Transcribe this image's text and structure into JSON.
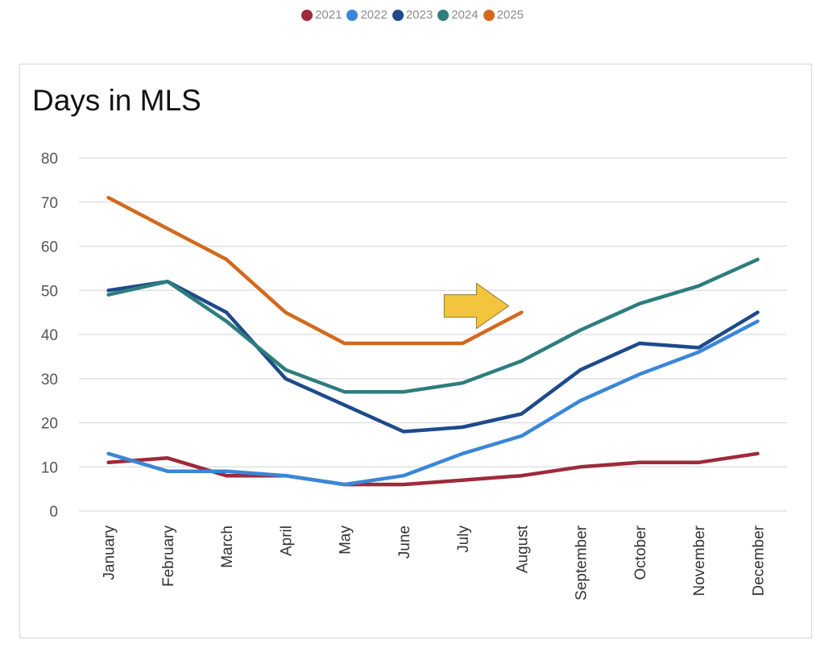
{
  "chart_data": {
    "type": "line",
    "title": "Days in MLS",
    "xlabel": "",
    "ylabel": "",
    "ylim": [
      0,
      80
    ],
    "yticks": [
      0,
      10,
      20,
      30,
      40,
      50,
      60,
      70,
      80
    ],
    "grid": true,
    "legend_position": "top-center",
    "categories": [
      "January",
      "February",
      "March",
      "April",
      "May",
      "June",
      "July",
      "August",
      "September",
      "October",
      "November",
      "December"
    ],
    "series": [
      {
        "name": "2021",
        "color": "#9e2a3a",
        "values": [
          11,
          12,
          8,
          8,
          6,
          6,
          7,
          8,
          10,
          11,
          11,
          13
        ]
      },
      {
        "name": "2022",
        "color": "#3a86d8",
        "values": [
          13,
          9,
          9,
          8,
          6,
          8,
          13,
          17,
          25,
          31,
          36,
          43
        ]
      },
      {
        "name": "2023",
        "color": "#1d4a8a",
        "values": [
          50,
          52,
          45,
          30,
          24,
          18,
          19,
          22,
          32,
          38,
          37,
          45
        ]
      },
      {
        "name": "2024",
        "color": "#2e7d7d",
        "values": [
          49,
          52,
          43,
          32,
          27,
          27,
          29,
          34,
          41,
          47,
          51,
          57
        ]
      },
      {
        "name": "2025",
        "color": "#d2691e",
        "values": [
          71,
          64,
          57,
          45,
          38,
          38,
          38,
          45,
          null,
          null,
          null,
          null
        ]
      }
    ],
    "annotation": {
      "type": "arrow",
      "icon": "right-arrow-icon",
      "color": "#f2c53d",
      "points_to": {
        "series": "2025",
        "category": "August"
      }
    }
  }
}
